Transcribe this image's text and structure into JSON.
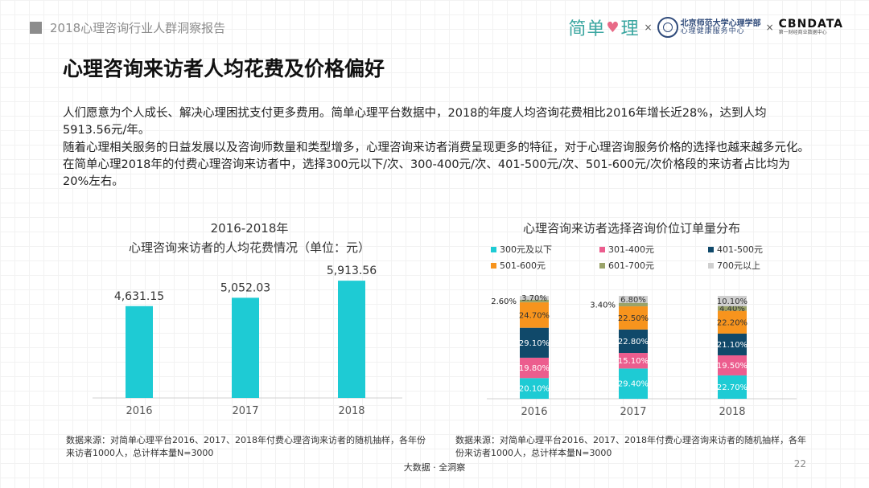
{
  "header": {
    "title": "2018心理咨询行业人群洞察报告"
  },
  "logos": {
    "brand1_a": "简单",
    "brand1_heart": "♥",
    "brand1_b": "理",
    "sep": "×",
    "bnu_line1": "北京师范大学心理学部",
    "bnu_line2": "心理健康服务中心",
    "cbn_line1": "CBNDATA",
    "cbn_line2": "第一财经商业数据中心"
  },
  "page_title": "心理咨询来访者人均花费及价格偏好",
  "paragraphs": {
    "p1": "人们愿意为个人成长、解决心理困扰支付更多费用。简单心理平台数据中，2018的年度人均咨询花费相比2016年增长近28%，达到人均5913.56元/年。",
    "p2": "随着心理相关服务的日益发展以及咨询师数量和类型增多，心理咨询来访者消费呈现更多的特征，对于心理咨询服务价格的选择也越来越多元化。在简单心理2018年的付费心理咨询来访者中，选择300元以下/次、300-400元/次、401-500元/次、501-600元/次价格段的来访者占比均为20%左右。"
  },
  "chart_data": [
    {
      "type": "bar",
      "title": "2016-2018年",
      "subtitle": "心理咨询来访者的人均花费情况（单位：元）",
      "categories": [
        "2016",
        "2017",
        "2018"
      ],
      "values": [
        4631.15,
        5052.03,
        5913.56
      ],
      "value_labels": [
        "4,631.15",
        "5,052.03",
        "5,913.56"
      ],
      "ylim": [
        0,
        6000
      ],
      "xlabel": "",
      "ylabel": "",
      "color": "#1ecbd4"
    },
    {
      "type": "bar",
      "stacked": true,
      "title": "心理咨询来访者选择咨询价位订单量分布",
      "categories": [
        "2016",
        "2017",
        "2018"
      ],
      "ylim": [
        0,
        100
      ],
      "series": [
        {
          "name": "300元及以下",
          "color": "#1ecbd4",
          "values": [
            20.1,
            29.4,
            22.7
          ],
          "labels": [
            "20.10%",
            "29.40%",
            "22.70%"
          ]
        },
        {
          "name": "301-400元",
          "color": "#ec5d8e",
          "values": [
            19.8,
            15.1,
            19.5
          ],
          "labels": [
            "19.80%",
            "15.10%",
            "19.50%"
          ]
        },
        {
          "name": "401-500元",
          "color": "#10496a",
          "values": [
            29.1,
            22.8,
            21.1
          ],
          "labels": [
            "29.10%",
            "22.80%",
            "21.10%"
          ]
        },
        {
          "name": "501-600元",
          "color": "#f7941d",
          "values": [
            24.7,
            22.5,
            22.2
          ],
          "labels": [
            "24.70%",
            "22.50%",
            "22.20%"
          ]
        },
        {
          "name": "601-700元",
          "color": "#9aa36a",
          "values": [
            2.6,
            3.4,
            4.4
          ],
          "labels": [
            "2.60%",
            "3.40%",
            "4.40%"
          ]
        },
        {
          "name": "700元以上",
          "color": "#cfcfcf",
          "values": [
            3.7,
            6.8,
            10.1
          ],
          "labels": [
            "3.70%",
            "6.80%",
            "10.10%"
          ]
        }
      ]
    }
  ],
  "sources": {
    "left": "数据来源：对简单心理平台2016、2017、2018年付费心理咨询来访者的随机抽样，各年份来访者1000人，总计样本量N=3000",
    "right": "数据来源：对简单心理平台2016、2017、2018年付费心理咨询来访者的随机抽样，各年份来访者1000人，总计样本量N=3000"
  },
  "footer": {
    "text": "大数据 · 全洞察",
    "page": "22"
  }
}
